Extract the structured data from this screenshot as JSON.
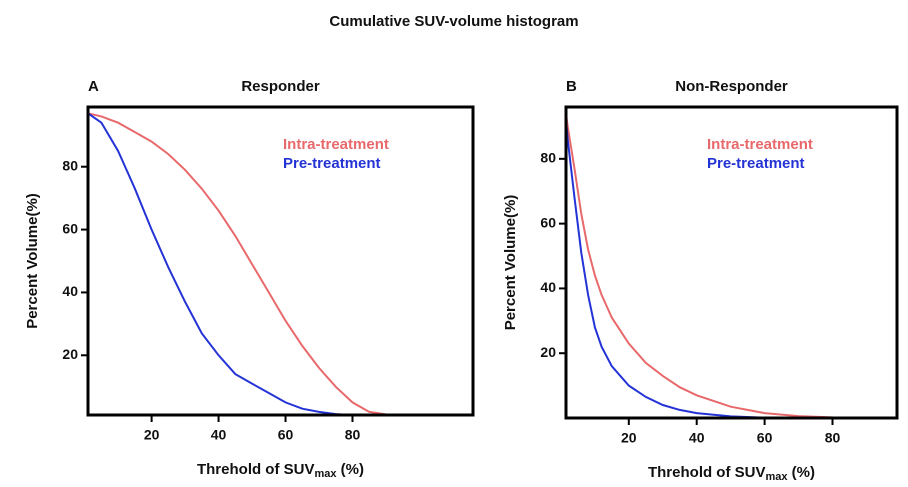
{
  "title": "Cumulative SUV-volume histogram",
  "chart_data": [
    {
      "type": "line",
      "panel": "A",
      "title": "Responder",
      "x_label": "Threhold of SUV",
      "x_label_sub": "max",
      "x_label_suffix": " (%)",
      "y_label": "Percent Volume(%)",
      "xlim": [
        1,
        116
      ],
      "ylim": [
        1,
        99
      ],
      "xticks": [
        20,
        40,
        60,
        80
      ],
      "yticks": [
        20,
        40,
        60,
        80
      ],
      "x": [
        1,
        5,
        10,
        15,
        20,
        25,
        30,
        35,
        40,
        45,
        50,
        55,
        60,
        65,
        70,
        75,
        80,
        85,
        90,
        95,
        100,
        105,
        110,
        116
      ],
      "series": [
        {
          "name": "Intra-treatment",
          "color": "#e8696b",
          "values": [
            97,
            96,
            94,
            91,
            88,
            84,
            79,
            73,
            66,
            58,
            49,
            40,
            31,
            23,
            16,
            10,
            5,
            2,
            1.2,
            1,
            1,
            1,
            1,
            1
          ]
        },
        {
          "name": "Pre-treatment",
          "color": "#2433d6",
          "values": [
            97,
            94,
            85,
            73,
            60,
            48,
            37,
            27,
            20,
            14,
            11,
            8,
            5,
            3,
            2,
            1.3,
            1,
            1,
            1,
            1,
            1,
            1,
            1,
            1
          ]
        }
      ]
    },
    {
      "type": "line",
      "panel": "B",
      "title": "Non-Responder",
      "x_label": "Threhold of SUV",
      "x_label_sub": "max",
      "x_label_suffix": " (%)",
      "y_label": "Percent Volume(%)",
      "xlim": [
        1.5,
        99
      ],
      "ylim": [
        0,
        96
      ],
      "xticks": [
        20,
        40,
        60,
        80
      ],
      "yticks": [
        20,
        40,
        60,
        80
      ],
      "x": [
        1.5,
        2,
        4,
        6,
        8,
        10,
        12,
        15,
        20,
        25,
        30,
        35,
        40,
        50,
        60,
        70,
        80,
        90,
        99
      ],
      "series": [
        {
          "name": "Intra-treatment",
          "color": "#e8696b",
          "values": [
            94,
            90,
            77,
            63,
            52,
            44,
            38,
            31,
            23,
            17,
            13,
            9.5,
            7,
            3.5,
            1.5,
            0.6,
            0.2,
            0.1,
            0.1
          ]
        },
        {
          "name": "Pre-treatment",
          "color": "#2433d6",
          "values": [
            92,
            86,
            68,
            51,
            38,
            28,
            22,
            16,
            10,
            6.5,
            4,
            2.5,
            1.5,
            0.5,
            0.1,
            0.1,
            0.1,
            0.1,
            0.1
          ]
        }
      ]
    }
  ]
}
